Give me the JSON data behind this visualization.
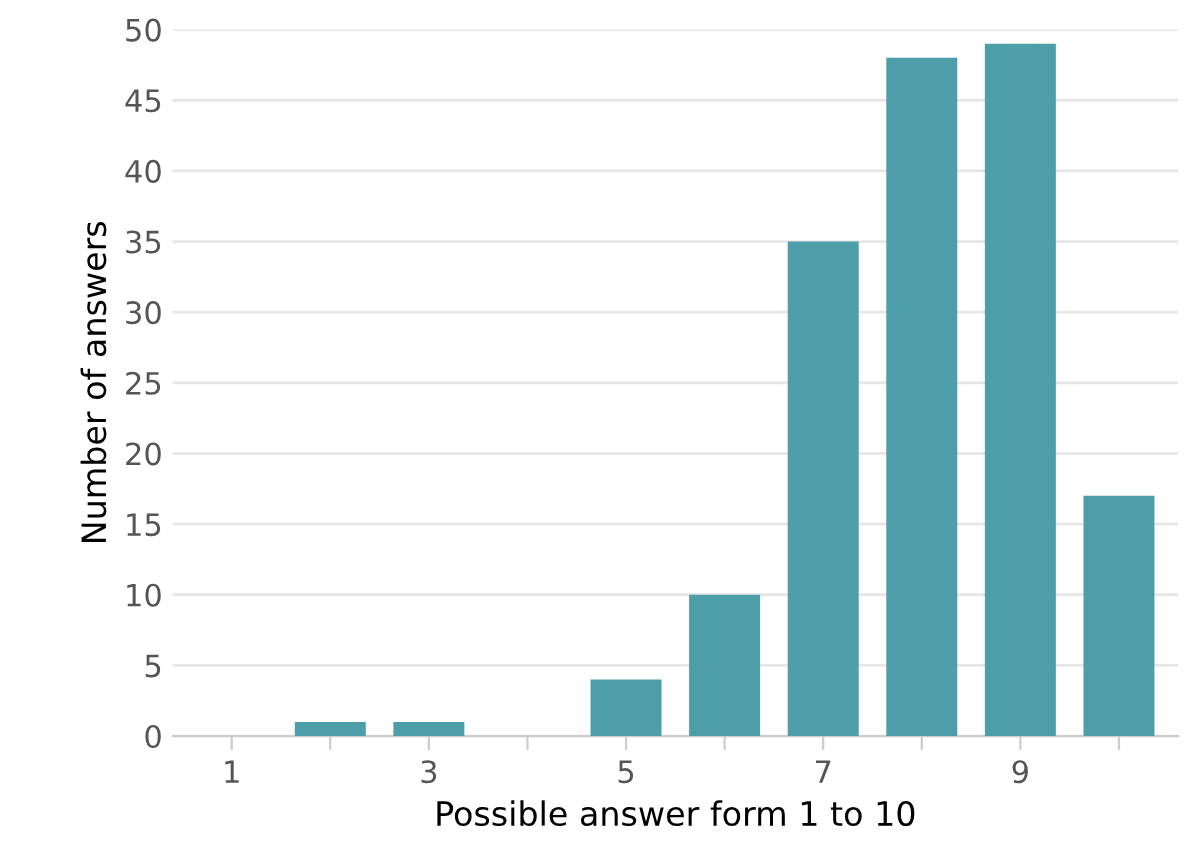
{
  "chart_data": {
    "type": "bar",
    "xlabel": "Possible answer form 1 to 10",
    "ylabel": "Number of answers",
    "categories": [
      "1",
      null,
      "3",
      null,
      "5",
      null,
      "7",
      null,
      "9",
      null
    ],
    "values": [
      0,
      1,
      1,
      0,
      4,
      10,
      35,
      48,
      49,
      17
    ],
    "color": "#4e9ea9",
    "ylim": [
      0,
      50
    ],
    "yticks": [
      0,
      5,
      10,
      15,
      20,
      25,
      30,
      35,
      40,
      45,
      50
    ],
    "grid": "y",
    "legend": false
  }
}
